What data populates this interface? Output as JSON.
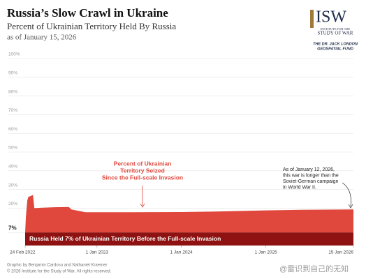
{
  "chart_data": {
    "type": "area",
    "title": "Russia’s Slow Crawl in Ukraine",
    "subtitle": "Percent of Ukrainian Territory Held By Russia",
    "date_note": "as of January 15, 2026",
    "logo": {
      "mark": "ISW",
      "line1": "INSTITUTE FOR THE",
      "line2": "STUDY OF WAR",
      "fund1": "THE DR. JACK LONDON",
      "fund2": "GEOSPATIAL FUND"
    },
    "x": [
      "2022-02-24",
      "2022-02-27",
      "2022-03-05",
      "2022-03-10",
      "2022-03-20",
      "2022-03-30",
      "2022-04-05",
      "2022-05-01",
      "2022-07-01",
      "2022-09-01",
      "2022-09-12",
      "2022-11-12",
      "2023-06-01",
      "2024-01-01",
      "2024-06-01",
      "2025-01-01",
      "2025-06-01",
      "2026-01-15"
    ],
    "series": [
      {
        "name": "Percent of Ukrainian Territory Seized Since the Full-scale Invasion",
        "color": "#e0483d",
        "values": [
          7,
          15,
          24,
          26,
          26.5,
          27,
          20,
          20.2,
          20.5,
          20.6,
          19.3,
          17.8,
          17.8,
          17.9,
          18.2,
          18.8,
          19.1,
          19.3
        ]
      }
    ],
    "baseline": {
      "value": 7,
      "color": "#8e1212",
      "label": "Russia Held 7% of Ukrainian Territory Before the Full-scale Invasion"
    },
    "xlim": [
      "2022-02-24",
      "2026-01-15"
    ],
    "xticks": [
      {
        "value": "2022-02-24",
        "label": "24 Feb 2022"
      },
      {
        "value": "2023-01-01",
        "label": "1 Jan 2023"
      },
      {
        "value": "2024-01-01",
        "label": "1 Jan 2024"
      },
      {
        "value": "2025-01-01",
        "label": "1 Jan 2025"
      },
      {
        "value": "2026-01-15",
        "label": "15 Jan 2026"
      }
    ],
    "ylim": [
      0,
      100
    ],
    "yticks": [
      {
        "value": 7,
        "label": "7%"
      },
      {
        "value": 20,
        "label": "20%"
      },
      {
        "value": 30,
        "label": "30%"
      },
      {
        "value": 40,
        "label": "40%"
      },
      {
        "value": 50,
        "label": "50%"
      },
      {
        "value": 60,
        "label": "60%"
      },
      {
        "value": 70,
        "label": "70%"
      },
      {
        "value": 80,
        "label": "80%"
      },
      {
        "value": 90,
        "label": "90%"
      },
      {
        "value": 100,
        "label": "100%"
      }
    ],
    "grid": true,
    "annotations": [
      {
        "lines": [
          "Percent of Ukrainian",
          "Territory Seized",
          "Since the Full-scale Invasion"
        ],
        "color": "#e0483d"
      },
      {
        "lines": [
          "As of January 12, 2026,",
          "this war is longer than the",
          "Soviet-German campaign",
          "in World War II."
        ],
        "color": "#222222"
      }
    ],
    "credits": [
      "Graphic by Benjamin Cardoso and Nathaniel Kraemer",
      "© 2026 Institute for the Study of War. All rights reserved."
    ],
    "watermark": "@雷识到自己的无知"
  }
}
